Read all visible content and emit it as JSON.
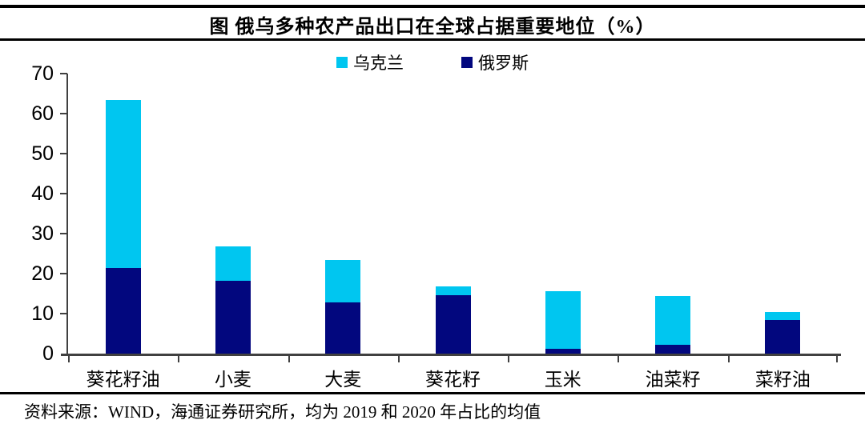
{
  "title": "图 俄乌多种农产品出口在全球占据重要地位（%）",
  "legend": [
    {
      "label": "乌克兰",
      "color": "#00C6F0"
    },
    {
      "label": "俄罗斯",
      "color": "#02077E"
    }
  ],
  "source_note": "资料来源：WIND，海通证券研究所，均为 2019 和 2020 年占比的均值",
  "colors": {
    "ukraine": "#00C6F0",
    "russia": "#02077E",
    "axis": "#404040"
  },
  "chart_data": {
    "type": "bar",
    "stacked": true,
    "title": "图 俄乌多种农产品出口在全球占据重要地位（%）",
    "categories": [
      "葵花籽油",
      "小麦",
      "大麦",
      "葵花籽",
      "玉米",
      "油菜籽",
      "菜籽油"
    ],
    "series": [
      {
        "name": "俄罗斯",
        "color": "#02077E",
        "values": [
          21.4,
          18.2,
          12.8,
          14.7,
          1.3,
          2.3,
          8.4
        ]
      },
      {
        "name": "乌克兰",
        "color": "#00C6F0",
        "values": [
          42.1,
          8.6,
          10.6,
          2.2,
          14.4,
          12.1,
          2.1
        ]
      }
    ],
    "xlabel": "",
    "ylabel": "",
    "ylim": [
      0,
      70
    ],
    "y_ticks": [
      0,
      10,
      20,
      30,
      40,
      50,
      60,
      70
    ],
    "legend_position": "top",
    "grid": false
  }
}
